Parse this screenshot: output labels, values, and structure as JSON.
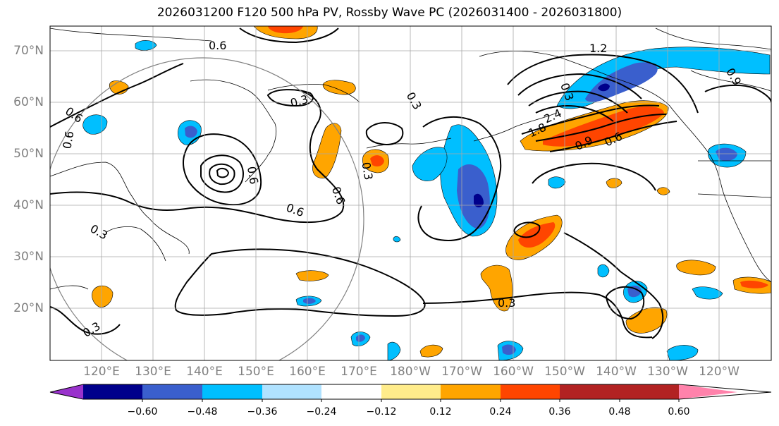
{
  "title": "2026031200 F120 500 hPa PV, Rossby Wave PC (2026031400 - 2026031800)",
  "lat_labels": [
    "70°N",
    "60°N",
    "50°N",
    "40°N",
    "30°N",
    "20°N"
  ],
  "lon_labels": [
    "120°E",
    "130°E",
    "140°E",
    "150°E",
    "160°E",
    "170°E",
    "180°W",
    "170°W",
    "160°W",
    "150°W",
    "140°W",
    "130°W",
    "120°W"
  ],
  "colorbar": {
    "ticks": [
      "−0.60",
      "−0.48",
      "−0.36",
      "−0.24",
      "−0.12",
      "0.12",
      "0.24",
      "0.36",
      "0.48",
      "0.60"
    ],
    "colors": [
      "#9932cc",
      "#00008b",
      "#3a5fcd",
      "#00bfff",
      "#b0e2ff",
      "#ffffff",
      "#ffec8b",
      "#ffa500",
      "#ff4500",
      "#b22222",
      "#ff82ab"
    ]
  },
  "contour_labels": [
    "0.6",
    "0.6",
    "0.6",
    "0.3",
    "0.3",
    "0.3",
    "0.6",
    "0.6",
    "0.6",
    "0.3",
    "0.3",
    "1.2",
    "0.9",
    "0.9",
    "0.6",
    "0.3",
    "1.8",
    "2.4",
    "0.3"
  ]
}
